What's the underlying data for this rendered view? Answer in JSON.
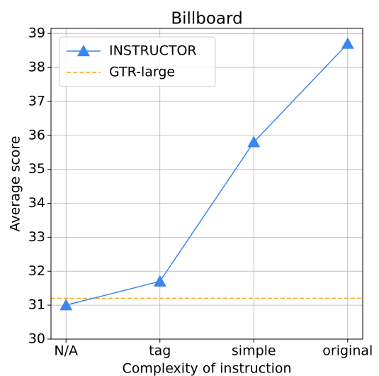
{
  "chart_data": {
    "type": "line",
    "title": "Billboard",
    "x_label": "Complexity of instruction",
    "y_label": "Average score",
    "categories": [
      "N/A",
      "tag",
      "simple",
      "original"
    ],
    "series": [
      {
        "name": "INSTRUCTOR",
        "color": "#3b87f0",
        "marker": "triangle",
        "values": [
          31.0,
          31.7,
          35.8,
          38.7
        ]
      }
    ],
    "reference_lines": [
      {
        "name": "GTR-large",
        "color": "#f5a623",
        "style": "dashed",
        "value": 31.2
      }
    ],
    "ylim": [
      30,
      39.15
    ],
    "yticks": [
      30,
      31,
      32,
      33,
      34,
      35,
      36,
      37,
      38,
      39
    ],
    "grid": true,
    "legend": "upper left"
  }
}
